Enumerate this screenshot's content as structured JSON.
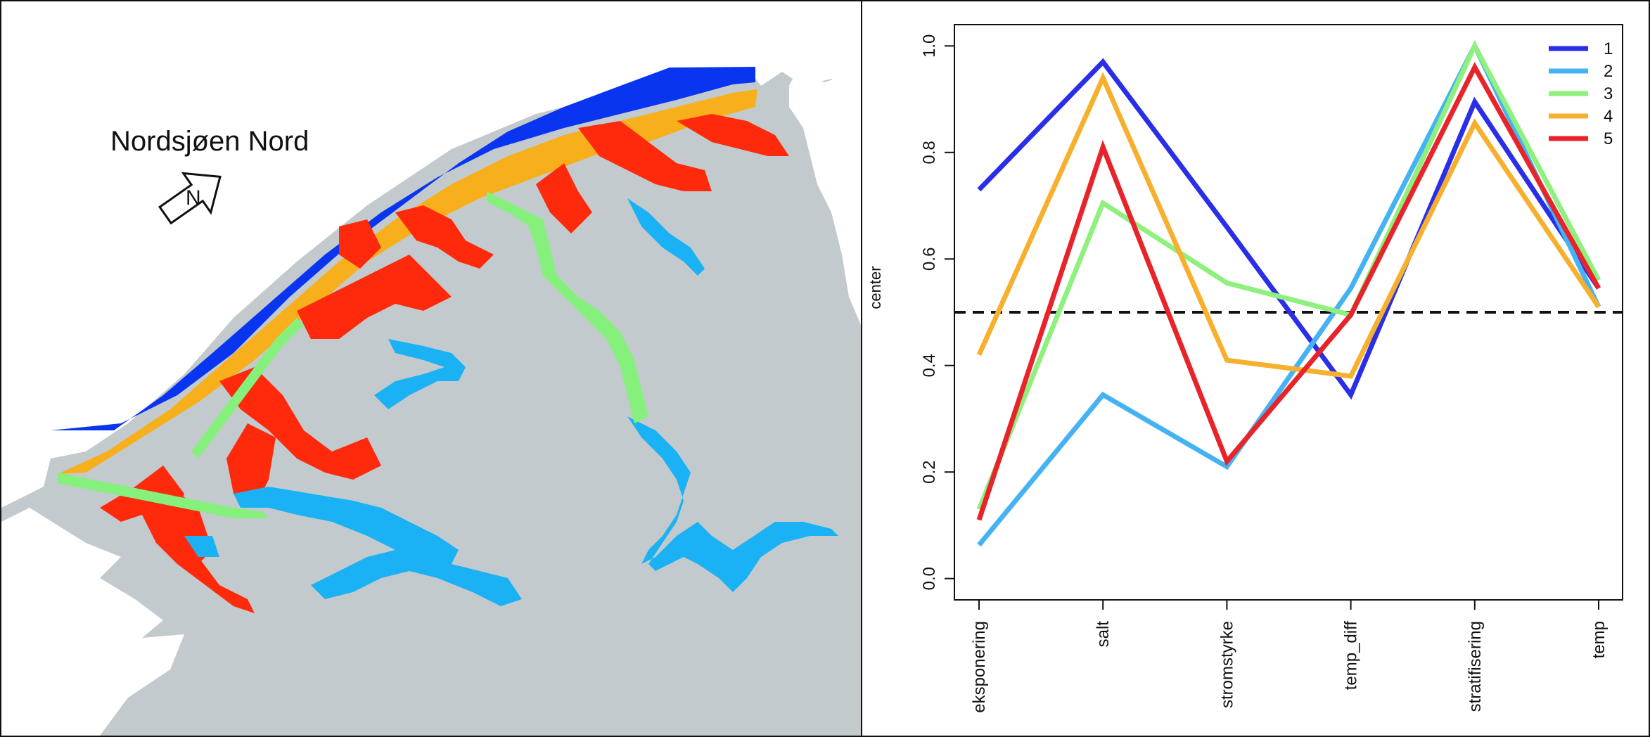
{
  "map": {
    "title": "Nordsjøen Nord",
    "north_arrow_letter": "N",
    "colors": {
      "land": "#c3cacd",
      "white_land": "#ffffff",
      "cluster_1": "#0a35f0",
      "cluster_2": "#1ab2f4",
      "cluster_3": "#86f07c",
      "cluster_4": "#f7b01c",
      "cluster_5": "#ff2a0b"
    },
    "icons": [
      "north-arrow-icon"
    ]
  },
  "chart_data": {
    "type": "line",
    "categories": [
      "eksponering",
      "salt",
      "stromstyrke",
      "temp_diff",
      "stratifisering",
      "temp"
    ],
    "series": [
      {
        "name": "1",
        "color": "#2a2ee8",
        "values": [
          0.73,
          0.97,
          0.66,
          0.345,
          0.895,
          0.545
        ]
      },
      {
        "name": "2",
        "color": "#45b3f3",
        "values": [
          0.063,
          0.345,
          0.21,
          0.545,
          1.0,
          0.51
        ]
      },
      {
        "name": "3",
        "color": "#8ef07d",
        "values": [
          0.13,
          0.705,
          0.555,
          0.495,
          1.0,
          0.56
        ]
      },
      {
        "name": "4",
        "color": "#f7b02d",
        "values": [
          0.42,
          0.94,
          0.41,
          0.38,
          0.855,
          0.51
        ]
      },
      {
        "name": "5",
        "color": "#e8232a",
        "values": [
          0.11,
          0.81,
          0.22,
          0.495,
          0.96,
          0.545
        ]
      }
    ],
    "title": "",
    "xlabel": "",
    "ylabel": "center",
    "ylim": [
      -0.04,
      1.04
    ],
    "yticks": [
      "0.0",
      "0.2",
      "0.4",
      "0.6",
      "0.8",
      "1.0"
    ],
    "reference_line": 0.5,
    "legend_position": "top-right",
    "grid": false
  }
}
